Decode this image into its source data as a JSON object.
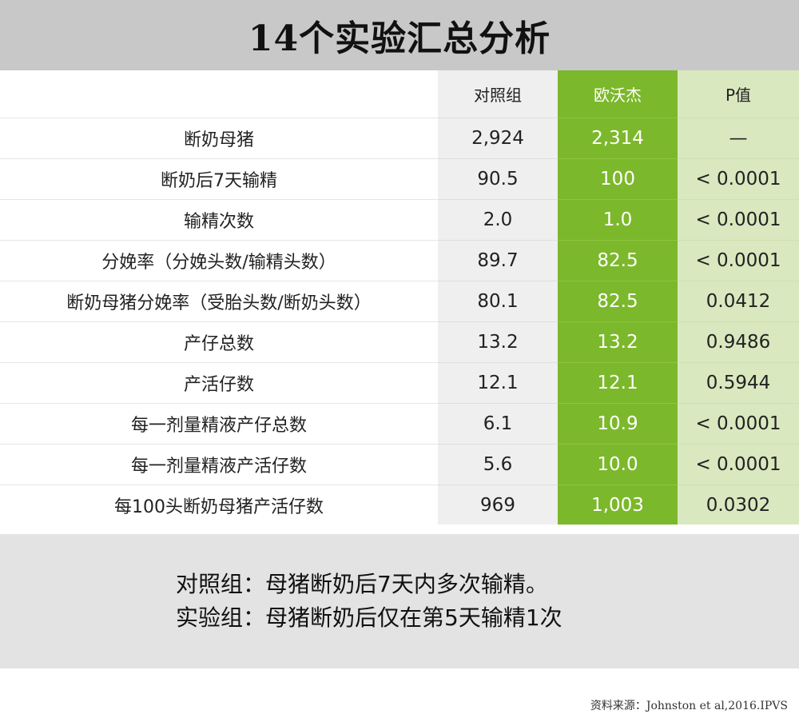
{
  "title": "14个实验汇总分析",
  "table": {
    "headers": {
      "label": "",
      "control": "对照组",
      "experiment": "欧沃杰",
      "p": "P值"
    },
    "rows": [
      {
        "label": "断奶母猪",
        "control": "2,924",
        "experiment": "2,314",
        "p": "—"
      },
      {
        "label": "断奶后7天输精",
        "control": "90.5",
        "experiment": "100",
        "p": "< 0.0001"
      },
      {
        "label": "输精次数",
        "control": "2.0",
        "experiment": "1.0",
        "p": "< 0.0001"
      },
      {
        "label": "分娩率（分娩头数/输精头数）",
        "control": "89.7",
        "experiment": "82.5",
        "p": "< 0.0001"
      },
      {
        "label": "断奶母猪分娩率（受胎头数/断奶头数）",
        "control": "80.1",
        "experiment": "82.5",
        "p": "0.0412"
      },
      {
        "label": "产仔总数",
        "control": "13.2",
        "experiment": "13.2",
        "p": "0.9486"
      },
      {
        "label": "产活仔数",
        "control": "12.1",
        "experiment": "12.1",
        "p": "0.5944"
      },
      {
        "label": "每一剂量精液产仔总数",
        "control": "6.1",
        "experiment": "10.9",
        "p": "< 0.0001"
      },
      {
        "label": "每一剂量精液产活仔数",
        "control": "5.6",
        "experiment": "10.0",
        "p": "< 0.0001"
      },
      {
        "label": "每100头断奶母猪产活仔数",
        "control": "969",
        "experiment": "1,003",
        "p": "0.0302"
      }
    ]
  },
  "notes": [
    "对照组：母猪断奶后7天内多次输精。",
    "实验组：母猪断奶后仅在第5天输精1次"
  ],
  "source": "资料来源：Johnston et al,2016.IPVS",
  "colors": {
    "title_bg": "#c8c8c8",
    "control_bg": "#efefef",
    "experiment_bg": "#7cb82b",
    "p_bg": "#d9e8bf",
    "note_bg": "#e3e3e3"
  }
}
